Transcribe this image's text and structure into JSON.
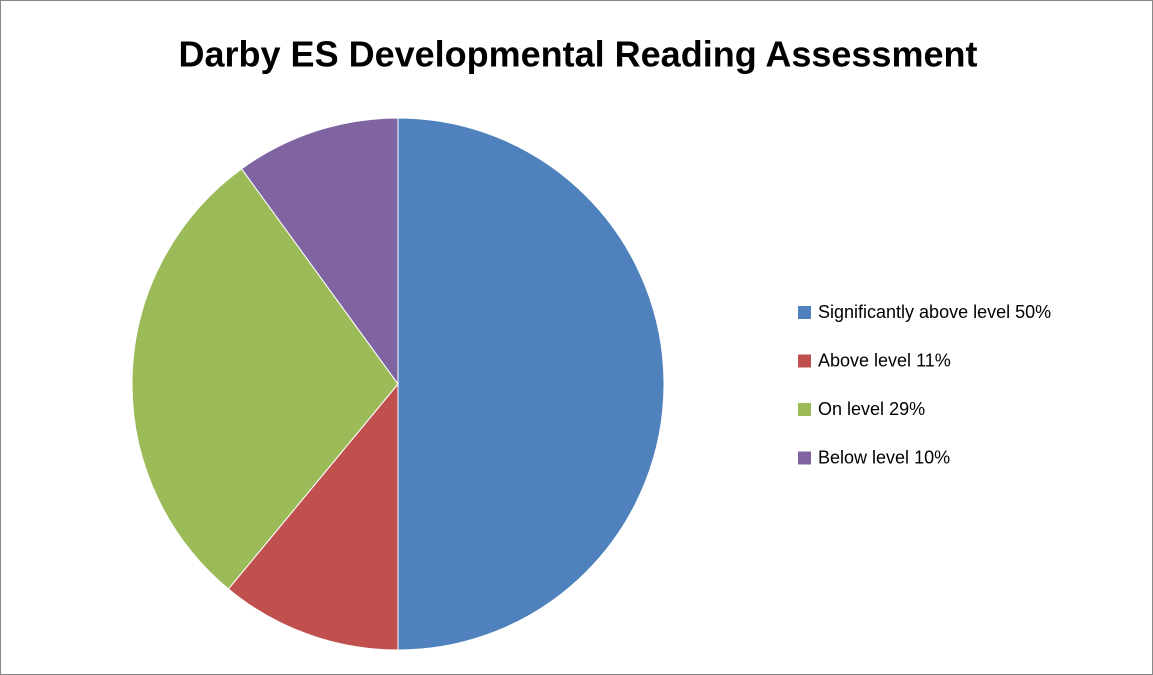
{
  "chart_data": {
    "type": "pie",
    "title": "Darby ES Developmental Reading Assessment",
    "categories": [
      "Significantly above level",
      "Above level",
      "On level",
      "Below level"
    ],
    "values": [
      50,
      11,
      29,
      10
    ],
    "value_labels": [
      "50%",
      "11%",
      "29%",
      "10%"
    ],
    "colors": [
      "#4f81bd",
      "#c0504d",
      "#9bbb59",
      "#8064a2"
    ],
    "legend": "right"
  }
}
